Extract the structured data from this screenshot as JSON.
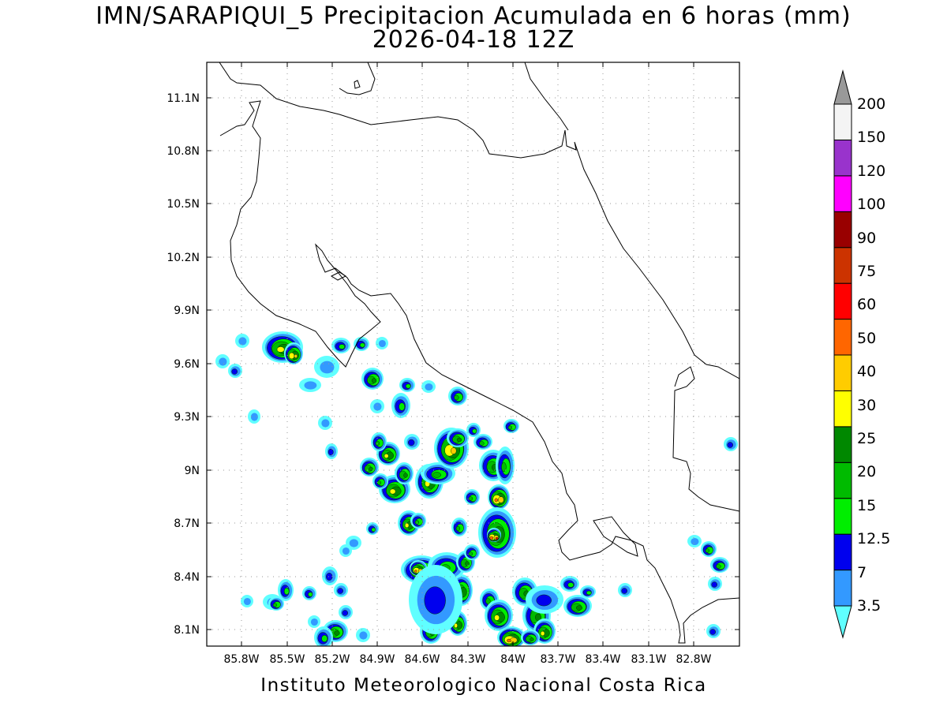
{
  "title_line1": "IMN/SARAPIQUI_5 Precipitacion Acumulada en 6 horas (mm)",
  "title_line2": "2026-04-18 12Z",
  "footer": "Instituto Meteorologico Nacional Costa Rica",
  "lat_labels": [
    "11.1N",
    "10.8N",
    "10.5N",
    "10.2N",
    "9.9N",
    "9.6N",
    "9.3N",
    "9N",
    "8.7N",
    "8.4N",
    "8.1N"
  ],
  "lon_labels": [
    "85.8W",
    "85.5W",
    "85.2W",
    "84.9W",
    "84.6W",
    "84.3W",
    "84W",
    "83.7W",
    "83.4W",
    "83.1W",
    "82.8W"
  ],
  "colorbar": {
    "unit": "mm",
    "levels": [
      "3.5",
      "7",
      "12.5",
      "15",
      "20",
      "25",
      "30",
      "40",
      "50",
      "60",
      "75",
      "90",
      "100",
      "120",
      "150",
      "200"
    ],
    "colors": [
      "#60ffff",
      "#3399ff",
      "#0000ee",
      "#00ee00",
      "#00bb00",
      "#008800",
      "#ffff00",
      "#ffcc00",
      "#ff6600",
      "#ff0000",
      "#cc3300",
      "#990000",
      "#ff00ff",
      "#9933cc",
      "#f4f4f4",
      "#999999"
    ]
  }
}
